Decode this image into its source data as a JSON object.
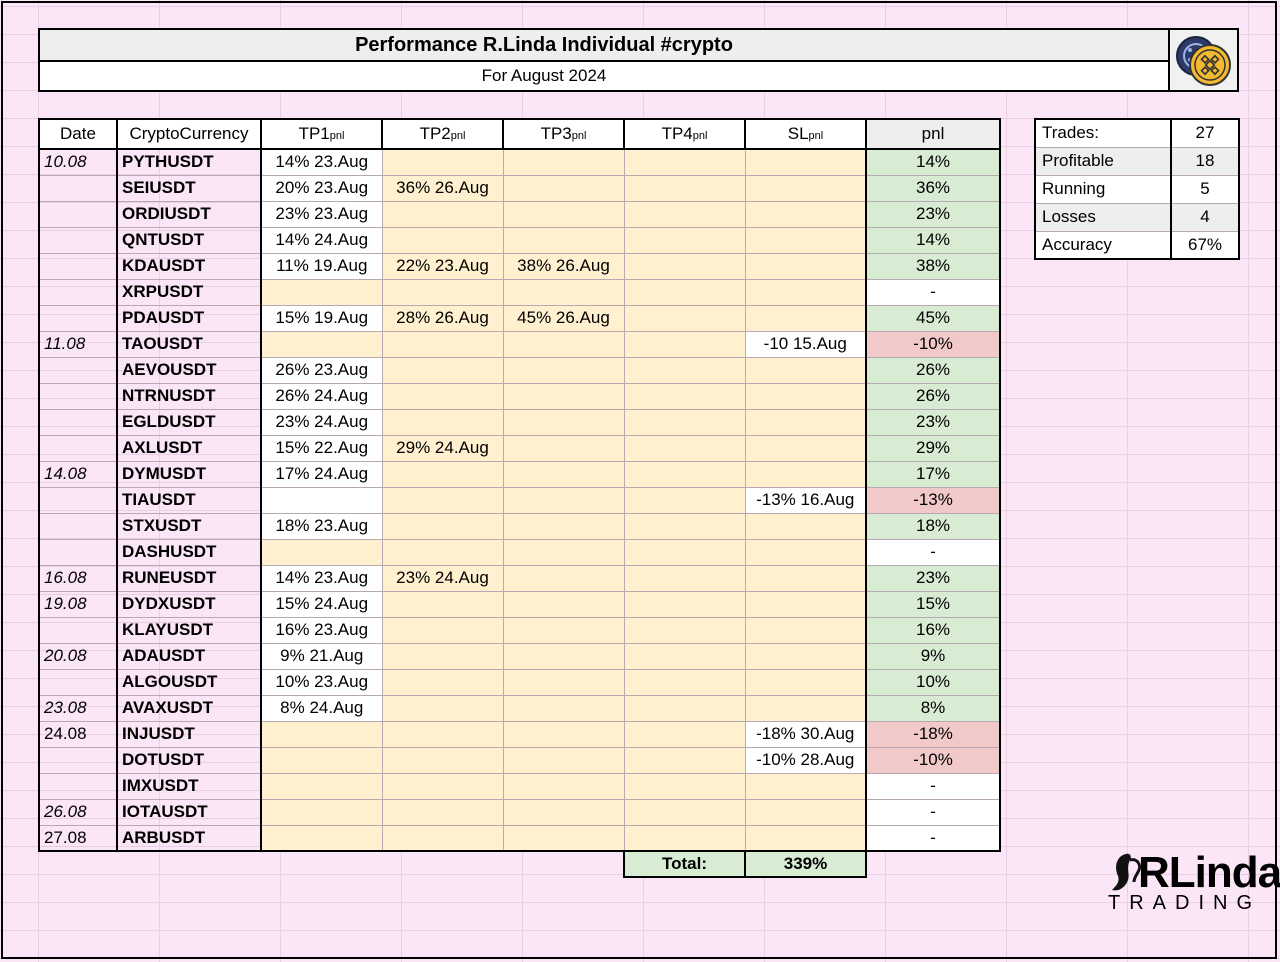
{
  "title": "Performance R.Linda Individual #crypto",
  "subtitle": "For August 2024",
  "logo_icon": "binance-coin-icon",
  "headers": {
    "date": "Date",
    "coin": "CryptoCurrency",
    "tp1": "TP1",
    "tp2": "TP2",
    "tp3": "TP3",
    "tp4": "TP4",
    "sl": "SL",
    "pnl_sub": "pnl",
    "pnl": "pnl"
  },
  "rows": [
    {
      "date": "10.08",
      "coin": "PYTHUSDT",
      "tp1": "14% 23.Aug",
      "tp2": "",
      "tp3": "",
      "tp4": "",
      "sl": "",
      "pnl": "14%",
      "status": "profit"
    },
    {
      "date": "",
      "coin": "SEIUSDT",
      "tp1": "20% 23.Aug",
      "tp2": "36% 26.Aug",
      "tp3": "",
      "tp4": "",
      "sl": "",
      "pnl": "36%",
      "status": "profit"
    },
    {
      "date": "",
      "coin": "ORDIUSDT",
      "tp1": "23% 23.Aug",
      "tp2": "",
      "tp3": "",
      "tp4": "",
      "sl": "",
      "pnl": "23%",
      "status": "profit"
    },
    {
      "date": "",
      "coin": "QNTUSDT",
      "tp1": "14% 24.Aug",
      "tp2": "",
      "tp3": "",
      "tp4": "",
      "sl": "",
      "pnl": "14%",
      "status": "profit"
    },
    {
      "date": "",
      "coin": "KDAUSDT",
      "tp1": "11% 19.Aug",
      "tp2": "22% 23.Aug",
      "tp3": "38% 26.Aug",
      "tp4": "",
      "sl": "",
      "pnl": "38%",
      "status": "profit"
    },
    {
      "date": "",
      "coin": "XRPUSDT",
      "tp1": "",
      "tp2": "",
      "tp3": "",
      "tp4": "",
      "sl": "",
      "pnl": "-",
      "status": "running"
    },
    {
      "date": "",
      "coin": "PDAUSDT",
      "tp1": "15% 19.Aug",
      "tp2": "28% 26.Aug",
      "tp3": "45% 26.Aug",
      "tp4": "",
      "sl": "",
      "pnl": "45%",
      "status": "profit"
    },
    {
      "date": "11.08",
      "coin": "TAOUSDT",
      "tp1": "",
      "tp2": "",
      "tp3": "",
      "tp4": "",
      "sl": "-10 15.Aug",
      "pnl": "-10%",
      "status": "loss"
    },
    {
      "date": "",
      "coin": "AEVOUSDT",
      "tp1": "26% 23.Aug",
      "tp2": "",
      "tp3": "",
      "tp4": "",
      "sl": "",
      "pnl": "26%",
      "status": "profit"
    },
    {
      "date": "",
      "coin": "NTRNUSDT",
      "tp1": "26% 24.Aug",
      "tp2": "",
      "tp3": "",
      "tp4": "",
      "sl": "",
      "pnl": "26%",
      "status": "profit"
    },
    {
      "date": "",
      "coin": "EGLDUSDT",
      "tp1": "23% 24.Aug",
      "tp2": "",
      "tp3": "",
      "tp4": "",
      "sl": "",
      "pnl": "23%",
      "status": "profit"
    },
    {
      "date": "",
      "coin": "AXLUSDT",
      "tp1": "15% 22.Aug",
      "tp2": "29% 24.Aug",
      "tp3": "",
      "tp4": "",
      "sl": "",
      "pnl": "29%",
      "status": "profit"
    },
    {
      "date": "14.08",
      "coin": "DYMUSDT",
      "tp1": "17% 24.Aug",
      "tp2": "",
      "tp3": "",
      "tp4": "",
      "sl": "",
      "pnl": "17%",
      "status": "profit"
    },
    {
      "date": "",
      "coin": "TIAUSDT",
      "tp1": "",
      "tp2": "",
      "tp3": "",
      "tp4": "",
      "sl": "-13% 16.Aug",
      "pnl": "-13%",
      "status": "loss"
    },
    {
      "date": "",
      "coin": "STXUSDT",
      "tp1": "18% 23.Aug",
      "tp2": "",
      "tp3": "",
      "tp4": "",
      "sl": "",
      "pnl": "18%",
      "status": "profit"
    },
    {
      "date": "",
      "coin": "DASHUSDT",
      "tp1": "",
      "tp2": "",
      "tp3": "",
      "tp4": "",
      "sl": "",
      "pnl": "-",
      "status": "running"
    },
    {
      "date": "16.08",
      "coin": "RUNEUSDT",
      "tp1": "14% 23.Aug",
      "tp2": "23% 24.Aug",
      "tp3": "",
      "tp4": "",
      "sl": "",
      "pnl": "23%",
      "status": "profit"
    },
    {
      "date": "19.08",
      "coin": "DYDXUSDT",
      "tp1": "15% 24.Aug",
      "tp2": "",
      "tp3": "",
      "tp4": "",
      "sl": "",
      "pnl": "15%",
      "status": "profit"
    },
    {
      "date": "",
      "coin": "KLAYUSDT",
      "tp1": "16% 23.Aug",
      "tp2": "",
      "tp3": "",
      "tp4": "",
      "sl": "",
      "pnl": "16%",
      "status": "profit"
    },
    {
      "date": "20.08",
      "coin": "ADAUSDT",
      "tp1": "9% 21.Aug",
      "tp2": "",
      "tp3": "",
      "tp4": "",
      "sl": "",
      "pnl": "9%",
      "status": "profit"
    },
    {
      "date": "",
      "coin": "ALGOUSDT",
      "tp1": "10% 23.Aug",
      "tp2": "",
      "tp3": "",
      "tp4": "",
      "sl": "",
      "pnl": "10%",
      "status": "profit"
    },
    {
      "date": "23.08",
      "coin": "AVAXUSDT",
      "tp1": "8% 24.Aug",
      "tp2": "",
      "tp3": "",
      "tp4": "",
      "sl": "",
      "pnl": "8%",
      "status": "profit"
    },
    {
      "date": "24.08",
      "coin": "INJUSDT",
      "tp1": "",
      "tp2": "",
      "tp3": "",
      "tp4": "",
      "sl": "-18% 30.Aug",
      "pnl": "-18%",
      "status": "loss"
    },
    {
      "date": "",
      "coin": "DOTUSDT",
      "tp1": "",
      "tp2": "",
      "tp3": "",
      "tp4": "",
      "sl": "-10% 28.Aug",
      "pnl": "-10%",
      "status": "loss"
    },
    {
      "date": "",
      "coin": "IMXUSDT",
      "tp1": "",
      "tp2": "",
      "tp3": "",
      "tp4": "",
      "sl": "",
      "pnl": "-",
      "status": "running"
    },
    {
      "date": "26.08",
      "coin": "IOTAUSDT",
      "tp1": "",
      "tp2": "",
      "tp3": "",
      "tp4": "",
      "sl": "",
      "pnl": "-",
      "status": "running"
    },
    {
      "date": "27.08",
      "coin": "ARBUSDT",
      "tp1": "",
      "tp2": "",
      "tp3": "",
      "tp4": "",
      "sl": "",
      "pnl": "-",
      "status": "running"
    }
  ],
  "total": {
    "label": "Total:",
    "value": "339%"
  },
  "stats": [
    {
      "label": "Trades:",
      "value": "27"
    },
    {
      "label": "Profitable",
      "value": "18"
    },
    {
      "label": "Running",
      "value": "5"
    },
    {
      "label": "Losses",
      "value": "4"
    },
    {
      "label": "Accuracy",
      "value": "67%"
    }
  ],
  "brand": {
    "main": "RLinda",
    "sub": "TRADING"
  },
  "colors": {
    "profit": "#d8ebd3",
    "loss": "#f2c9c9",
    "running": "#ffffff",
    "tp_cell": "#fff0cf",
    "header_bg": "#eeeeee",
    "page_bg": "#fbe6f7"
  }
}
